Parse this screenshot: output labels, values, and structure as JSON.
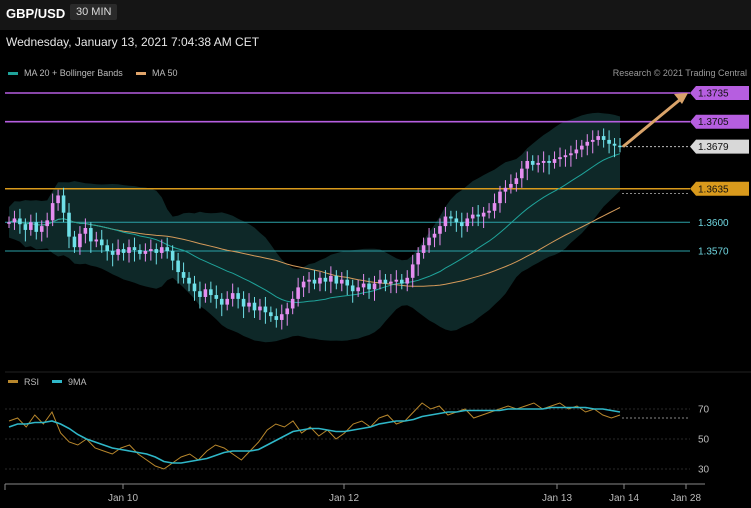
{
  "header": {
    "symbol": "GBP/USD",
    "timeframe": "30 MIN"
  },
  "datetime": "Wednesday, January 13, 2021 7:04:38 AM CET",
  "legend": [
    {
      "label": "MA 20 + Bollinger Bands",
      "color": "#1fa39a"
    },
    {
      "label": "MA 50",
      "color": "#e0a46a"
    }
  ],
  "credit": "Research © 2021 Trading Central",
  "colors": {
    "up": "#e58ef0",
    "down": "#6fe0e8",
    "ma20": "#1fa39a",
    "ma50": "#d49a5a",
    "band": "#0f2a2a",
    "resistance": "#b65ee0",
    "pivot": "#d99a1c",
    "support": "#2aa0a6",
    "arrow": "#d9a36a",
    "rsi": "#b8872c",
    "rsi_ma": "#2fb7c8"
  },
  "chart_data": [
    {
      "type": "candlestick",
      "ylim": [
        1.348,
        1.375
      ],
      "levels": [
        {
          "value": "1.3735",
          "kind": "resistance"
        },
        {
          "value": "1.3705",
          "kind": "resistance"
        },
        {
          "value": "1.3679",
          "kind": "current"
        },
        {
          "value": "1.3635",
          "kind": "pivot"
        },
        {
          "value": "1.3600",
          "kind": "support"
        },
        {
          "value": "1.3570",
          "kind": "support"
        }
      ],
      "close_path": [
        1.36,
        1.3604,
        1.3598,
        1.3592,
        1.36,
        1.359,
        1.3596,
        1.3602,
        1.362,
        1.3628,
        1.361,
        1.3585,
        1.3574,
        1.3588,
        1.3594,
        1.358,
        1.3582,
        1.3576,
        1.357,
        1.3566,
        1.3572,
        1.3568,
        1.3574,
        1.3571,
        1.3567,
        1.357,
        1.3572,
        1.3568,
        1.3574,
        1.357,
        1.356,
        1.3548,
        1.3542,
        1.3536,
        1.3528,
        1.3522,
        1.353,
        1.3524,
        1.352,
        1.3514,
        1.352,
        1.3526,
        1.352,
        1.3512,
        1.3516,
        1.3508,
        1.3512,
        1.3506,
        1.3502,
        1.3498,
        1.3504,
        1.351,
        1.352,
        1.3532,
        1.3538,
        1.354,
        1.3536,
        1.3542,
        1.3538,
        1.3544,
        1.3536,
        1.354,
        1.3534,
        1.3528,
        1.3532,
        1.3536,
        1.353,
        1.3536,
        1.354,
        1.3536,
        1.3538,
        1.354,
        1.3536,
        1.3542,
        1.3556,
        1.3568,
        1.3576,
        1.3584,
        1.3588,
        1.3596,
        1.3606,
        1.3604,
        1.36,
        1.3596,
        1.3604,
        1.3608,
        1.3606,
        1.361,
        1.3612,
        1.362,
        1.3632,
        1.3636,
        1.364,
        1.3646,
        1.3656,
        1.3664,
        1.366,
        1.3662,
        1.3664,
        1.3662,
        1.3666,
        1.3668,
        1.367,
        1.3672,
        1.3676,
        1.368,
        1.3684,
        1.3686,
        1.369,
        1.3686,
        1.3682,
        1.368,
        1.3679
      ],
      "forecast_target": "1.3735"
    },
    {
      "type": "line",
      "title": "RSI",
      "series": [
        {
          "name": "RSI"
        },
        {
          "name": "9MA"
        }
      ],
      "yticks": [
        "70",
        "50",
        "30"
      ],
      "xticks": [
        "Jan 10",
        "Jan 12",
        "Jan 13",
        "Jan 14",
        "Jan 28"
      ],
      "rsi_path": [
        62,
        64,
        58,
        66,
        60,
        68,
        54,
        48,
        46,
        50,
        44,
        42,
        40,
        44,
        46,
        40,
        36,
        32,
        30,
        34,
        38,
        40,
        36,
        42,
        46,
        44,
        40,
        36,
        42,
        48,
        56,
        60,
        58,
        62,
        54,
        58,
        52,
        56,
        50,
        54,
        60,
        62,
        58,
        64,
        66,
        60,
        62,
        68,
        74,
        70,
        72,
        66,
        68,
        70,
        64,
        66,
        68,
        70,
        72,
        70,
        72,
        74,
        70,
        72,
        74,
        70,
        72,
        68,
        70,
        66,
        64,
        66
      ],
      "rsi_ma_path": [
        58,
        60,
        60,
        61,
        61,
        62,
        60,
        57,
        53,
        50,
        48,
        46,
        44,
        43,
        42,
        41,
        40,
        38,
        35,
        34,
        34,
        35,
        36,
        37,
        39,
        41,
        42,
        42,
        42,
        43,
        46,
        49,
        52,
        55,
        56,
        57,
        57,
        56,
        55,
        55,
        56,
        57,
        58,
        60,
        61,
        62,
        62,
        63,
        65,
        66,
        67,
        68,
        68,
        69,
        69,
        69,
        69,
        69,
        70,
        70,
        70,
        70,
        70,
        71,
        71,
        71,
        71,
        71,
        70,
        70,
        69,
        68
      ]
    }
  ]
}
